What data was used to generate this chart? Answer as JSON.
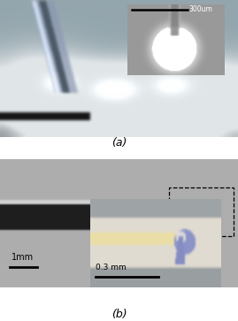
{
  "fig_width": 2.69,
  "fig_height": 3.63,
  "dpi": 100,
  "bg_color": "#ffffff",
  "panel_a_label": "(a)",
  "panel_b_label": "(b)",
  "inset_a_scale_text": "300um",
  "panel_b_scale1_text": "1mm",
  "panel_b_scale2_text": "0.3 mm"
}
